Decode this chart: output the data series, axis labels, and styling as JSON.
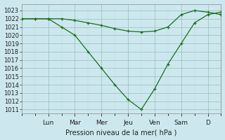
{
  "xlabel": "Pression niveau de la mer( hPa )",
  "bg_color": "#cce8ee",
  "grid_major_color": "#99bbbb",
  "grid_minor_color": "#bbdddd",
  "line_color": "#1a6e1a",
  "ylim": [
    1010.5,
    1023.8
  ],
  "yticks": [
    1011,
    1012,
    1013,
    1014,
    1015,
    1016,
    1017,
    1018,
    1019,
    1020,
    1021,
    1022,
    1023
  ],
  "day_labels": [
    "Lun",
    "Mar",
    "Mer",
    "Jeu",
    "Ven",
    "Sam",
    "D"
  ],
  "day_positions": [
    12,
    24,
    36,
    48,
    60,
    72,
    84
  ],
  "xlim": [
    0,
    90
  ],
  "x_line1": [
    0,
    6,
    12,
    18,
    24,
    30,
    36,
    42,
    48,
    54,
    60,
    66,
    72,
    78,
    84,
    90
  ],
  "y_line1": [
    1022.0,
    1022.0,
    1022.0,
    1021.0,
    1020.0,
    1018.0,
    1016.0,
    1014.0,
    1012.2,
    1011.0,
    1013.5,
    1016.5,
    1019.0,
    1021.5,
    1022.5,
    1022.8
  ],
  "x_line2": [
    0,
    6,
    12,
    18,
    24,
    30,
    36,
    42,
    48,
    54,
    60,
    66,
    72,
    78,
    84,
    90
  ],
  "y_line2": [
    1022.0,
    1022.0,
    1022.0,
    1022.0,
    1021.8,
    1021.5,
    1021.2,
    1020.8,
    1020.5,
    1020.4,
    1020.5,
    1021.0,
    1022.5,
    1023.0,
    1022.8,
    1022.5
  ],
  "xlabel_fontsize": 7,
  "ytick_fontsize": 6,
  "xtick_fontsize": 6.5
}
